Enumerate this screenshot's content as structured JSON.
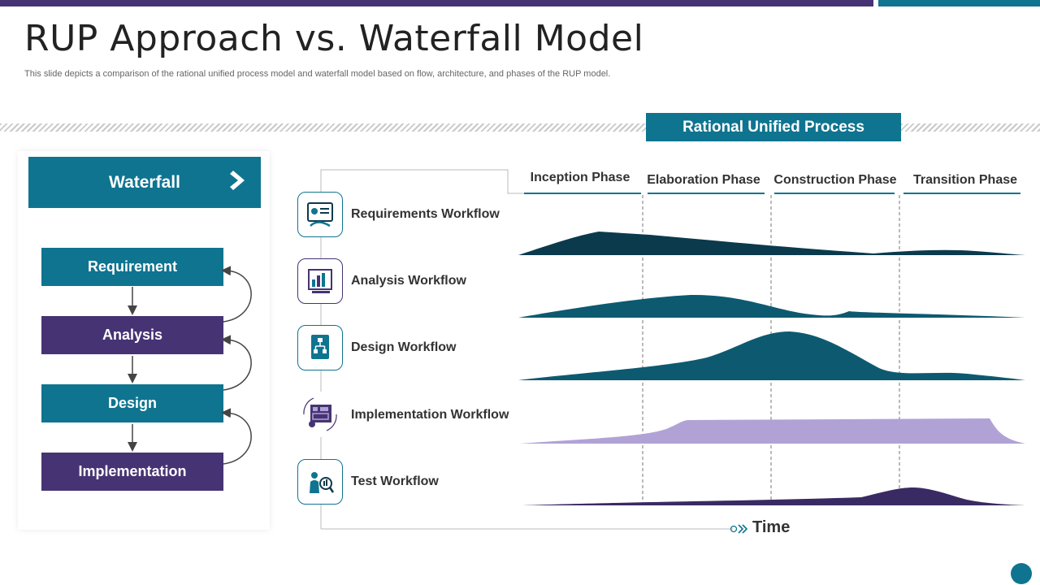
{
  "colors": {
    "teal": "#0f7490",
    "purple": "#463373",
    "dark_teal": "#0b3a4d",
    "mid_teal": "#0d5a70",
    "lavender": "#b1a2d6",
    "deep_purple": "#3a2a63"
  },
  "title": "RUP Approach vs. Waterfall Model",
  "subtitle": "This slide depicts a comparison of the rational unified process model and waterfall model based on flow, architecture, and phases of the RUP model.",
  "rup_banner": "Rational Unified Process",
  "waterfall": {
    "header": "Waterfall",
    "steps": [
      "Requirement",
      "Analysis",
      "Design",
      "Implementation"
    ]
  },
  "phases": [
    "Inception Phase",
    "Elaboration Phase",
    "Construction Phase",
    "Transition Phase"
  ],
  "workflows": [
    {
      "label": "Requirements Workflow",
      "icon": "requirements-gear-icon"
    },
    {
      "label": "Analysis Workflow",
      "icon": "analysis-chart-icon"
    },
    {
      "label": "Design Workflow",
      "icon": "design-hierarchy-icon"
    },
    {
      "label": "Implementation Workflow",
      "icon": "implementation-blueprint-icon"
    },
    {
      "label": "Test Workflow",
      "icon": "test-person-icon"
    }
  ],
  "time_label": "Time"
}
